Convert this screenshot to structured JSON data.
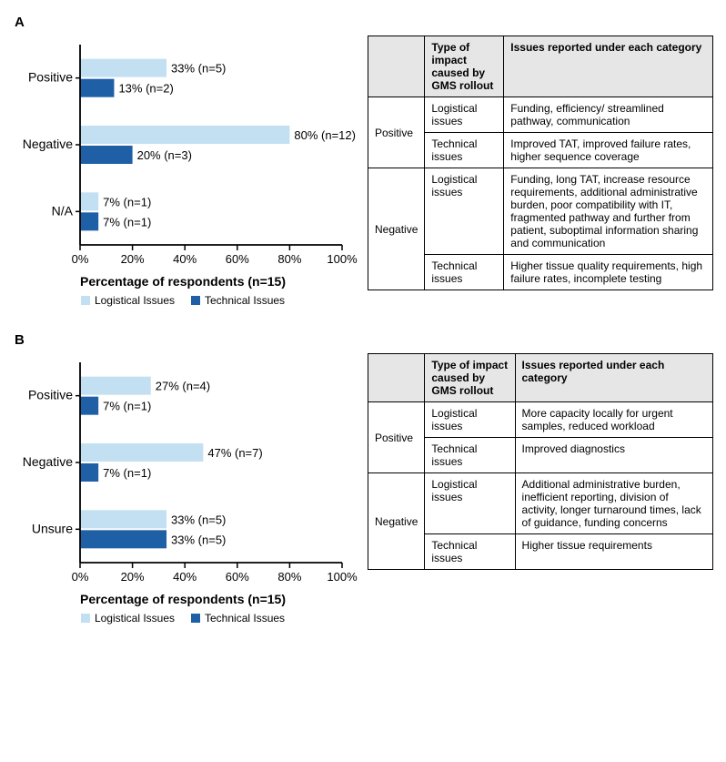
{
  "colors": {
    "logistical": "#c2e0f2",
    "technical": "#1f5fa6",
    "axis": "#000000",
    "grid": "#ffffff",
    "header_bg": "#e6e6e6",
    "bg": "#ffffff"
  },
  "legend": {
    "logistical": "Logistical Issues",
    "technical": "Technical Issues"
  },
  "axis": {
    "xmin": 0,
    "xmax": 100,
    "xtick_step": 20,
    "xlabel_A": "Percentage of respondents (n=15)",
    "xlabel_B": "Percentage of respondents (n=15)"
  },
  "panels": {
    "A": {
      "label": "A",
      "categories": [
        "Positive",
        "Negative",
        "N/A"
      ],
      "bars": [
        {
          "category": "Positive",
          "logistical": 33,
          "logistical_label": "33% (n=5)",
          "technical": 13,
          "technical_label": "13% (n=2)"
        },
        {
          "category": "Negative",
          "logistical": 80,
          "logistical_label": "80% (n=12)",
          "technical": 20,
          "technical_label": "20% (n=3)"
        },
        {
          "category": "N/A",
          "logistical": 7,
          "logistical_label": "7% (n=1)",
          "technical": 7,
          "technical_label": "7% (n=1)"
        }
      ],
      "table": {
        "headers": [
          "",
          "Type of impact caused by GMS rollout",
          "Issues reported under each category"
        ],
        "rows": [
          {
            "sentiment": "Positive",
            "rowspan": 2,
            "type": "Logistical issues",
            "issues": "Funding, efficiency/ streamlined pathway, communication"
          },
          {
            "sentiment": "",
            "type": "Technical issues",
            "issues": "Improved TAT, improved failure rates, higher sequence coverage"
          },
          {
            "sentiment": "Negative",
            "rowspan": 2,
            "type": "Logistical issues",
            "issues": "Funding, long TAT, increase resource requirements, additional administrative burden, poor compatibility with IT, fragmented pathway and further from patient, suboptimal information sharing and communication"
          },
          {
            "sentiment": "",
            "type": "Technical issues",
            "issues": "Higher tissue quality requirements, high failure rates, incomplete testing"
          }
        ]
      }
    },
    "B": {
      "label": "B",
      "categories": [
        "Positive",
        "Negative",
        "Unsure"
      ],
      "bars": [
        {
          "category": "Positive",
          "logistical": 27,
          "logistical_label": "27% (n=4)",
          "technical": 7,
          "technical_label": "7% (n=1)"
        },
        {
          "category": "Negative",
          "logistical": 47,
          "logistical_label": "47% (n=7)",
          "technical": 7,
          "technical_label": "7% (n=1)"
        },
        {
          "category": "Unsure",
          "logistical": 33,
          "logistical_label": "33% (n=5)",
          "technical": 33,
          "technical_label": "33% (n=5)"
        }
      ],
      "table": {
        "headers": [
          "",
          "Type of impact caused by GMS rollout",
          "Issues reported under each category"
        ],
        "rows": [
          {
            "sentiment": "Positive",
            "rowspan": 2,
            "type": "Logistical issues",
            "issues": "More capacity locally for urgent samples, reduced workload"
          },
          {
            "sentiment": "",
            "type": "Technical issues",
            "issues": "Improved diagnostics"
          },
          {
            "sentiment": "Negative",
            "rowspan": 2,
            "type": "Logistical issues",
            "issues": "Additional administrative burden, inefficient reporting, division of activity, longer turnaround times, lack of guidance, funding concerns"
          },
          {
            "sentiment": "",
            "type": "Technical issues",
            "issues": "Higher tissue requirements"
          }
        ]
      }
    }
  }
}
